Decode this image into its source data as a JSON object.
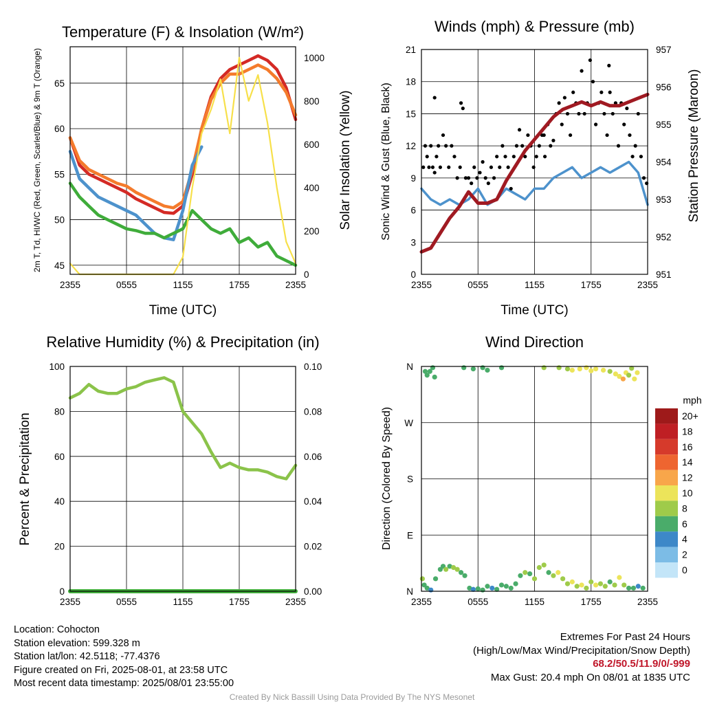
{
  "chart_data": [
    {
      "type": "line",
      "title": "Temperature (F) & Insolation (W/m²)",
      "ylabel_left": "2m T, Td, HI/WC (Red, Green, Scarlet/Blue) & 9m T (Orange)",
      "ylabel_right": "Solar Insolation (Yellow)",
      "xlabel": "Time (UTC)",
      "x_ticks": [
        "2355",
        "0555",
        "1155",
        "1755",
        "2355"
      ],
      "ylim_left": [
        44,
        69
      ],
      "yticks_left": [
        45,
        50,
        55,
        60,
        65
      ],
      "ylim_right": [
        0,
        1050
      ],
      "yticks_right": [
        0,
        200,
        400,
        600,
        800,
        1000
      ],
      "x_hours": [
        0,
        1,
        2,
        3,
        4,
        5,
        6,
        7,
        8,
        9,
        10,
        11,
        12,
        13,
        14,
        15,
        16,
        17,
        18,
        19,
        20,
        21,
        22,
        23,
        24
      ],
      "series": [
        {
          "color": "#d42a25",
          "values": [
            59,
            56,
            55,
            54.5,
            54,
            53.5,
            53,
            52.3,
            51.8,
            51.3,
            50.8,
            50.7,
            51.5,
            55,
            60,
            63.5,
            65.5,
            66.5,
            67,
            67.5,
            68,
            67.5,
            66.5,
            64.5,
            61
          ]
        },
        {
          "color": "#f47b2c",
          "values": [
            59,
            56.5,
            55.5,
            55,
            54.5,
            54,
            53.7,
            53,
            52.5,
            52,
            51.5,
            51.3,
            52,
            55.5,
            60,
            63.2,
            65,
            66,
            66,
            66.5,
            67,
            66.5,
            65.5,
            64,
            61.5
          ]
        },
        {
          "color": "#4d92cc",
          "values": [
            57.5,
            54.5,
            53.5,
            52.5,
            52,
            51.5,
            51,
            50.5,
            49.5,
            48.5,
            48,
            47.8,
            51,
            56,
            58,
            null,
            null,
            null,
            null,
            null,
            null,
            null,
            null,
            null,
            null
          ]
        },
        {
          "color": "#3fac3a",
          "values": [
            54,
            52.5,
            51.5,
            50.5,
            50,
            49.5,
            49,
            48.8,
            48.5,
            48.5,
            48,
            48.5,
            49,
            51,
            50,
            49,
            48.5,
            49,
            47.5,
            48,
            47,
            47.5,
            46,
            45.5,
            45
          ]
        },
        {
          "color": "#f7e04a",
          "values": [
            50,
            0,
            0,
            0,
            0,
            0,
            0,
            0,
            0,
            0,
            0,
            0,
            80,
            400,
            650,
            760,
            900,
            650,
            1000,
            800,
            920,
            700,
            400,
            150,
            50
          ]
        }
      ]
    },
    {
      "type": "line",
      "title": "Winds (mph) & Pressure (mb)",
      "ylabel_left": "Sonic Wind & Gust (Blue, Black)",
      "ylabel_right": "Station Pressure (Maroon)",
      "xlabel": "Time (UTC)",
      "x_ticks": [
        "2355",
        "0555",
        "1155",
        "1755",
        "2355"
      ],
      "ylim_left": [
        0,
        21
      ],
      "yticks_left": [
        0,
        3,
        6,
        9,
        12,
        15,
        18,
        21
      ],
      "ylim_right": [
        951,
        957
      ],
      "yticks_right": [
        951,
        952,
        953,
        954,
        955,
        956,
        957
      ],
      "x_hours": [
        0,
        1,
        2,
        3,
        4,
        5,
        6,
        7,
        8,
        9,
        10,
        11,
        12,
        13,
        14,
        15,
        16,
        17,
        18,
        19,
        20,
        21,
        22,
        23,
        24
      ],
      "series": [
        {
          "color": "#4d92cc",
          "values": [
            8,
            7,
            6.5,
            7,
            6.5,
            7,
            8,
            6.5,
            7,
            8,
            7.5,
            7,
            8,
            8,
            9,
            9.5,
            10,
            9,
            9.5,
            10,
            9.5,
            10,
            10.5,
            9.5,
            6.5
          ]
        },
        {
          "color": "#a01a22",
          "values": [
            951.6,
            951.7,
            952.1,
            952.5,
            952.8,
            953.2,
            952.9,
            952.9,
            953.0,
            953.5,
            953.9,
            954.3,
            954.6,
            954.9,
            955.2,
            955.4,
            955.5,
            955.6,
            955.5,
            955.6,
            955.5,
            955.5,
            955.6,
            955.7,
            955.8
          ]
        }
      ],
      "gust_points": [
        [
          0.2,
          10
        ],
        [
          0.4,
          12
        ],
        [
          0.6,
          11
        ],
        [
          0.8,
          10
        ],
        [
          1.0,
          12
        ],
        [
          1.2,
          10
        ],
        [
          1.4,
          9.5
        ],
        [
          1.6,
          11
        ],
        [
          1.8,
          12
        ],
        [
          2.0,
          10
        ],
        [
          2.3,
          13
        ],
        [
          2.6,
          12
        ],
        [
          2.9,
          10
        ],
        [
          3.2,
          12
        ],
        [
          3.5,
          11
        ],
        [
          3.8,
          9
        ],
        [
          4.1,
          10
        ],
        [
          4.4,
          15.5
        ],
        [
          4.7,
          9
        ],
        [
          5.0,
          9
        ],
        [
          5.3,
          8.5
        ],
        [
          5.6,
          10
        ],
        [
          5.9,
          9
        ],
        [
          6.2,
          9.5
        ],
        [
          6.5,
          10.5
        ],
        [
          6.8,
          9
        ],
        [
          7.1,
          8.5
        ],
        [
          7.4,
          10
        ],
        [
          7.7,
          9
        ],
        [
          8.0,
          11
        ],
        [
          8.3,
          10
        ],
        [
          8.6,
          12
        ],
        [
          8.9,
          11
        ],
        [
          9.2,
          10
        ],
        [
          9.5,
          8
        ],
        [
          9.8,
          11
        ],
        [
          10.1,
          12
        ],
        [
          10.4,
          13.5
        ],
        [
          10.7,
          12
        ],
        [
          11.0,
          11
        ],
        [
          11.3,
          13
        ],
        [
          11.6,
          12
        ],
        [
          11.9,
          10
        ],
        [
          12.2,
          11
        ],
        [
          12.5,
          12
        ],
        [
          12.8,
          13
        ],
        [
          13.1,
          11
        ],
        [
          13.4,
          14
        ],
        [
          13.7,
          12
        ],
        [
          14.0,
          12.5
        ],
        [
          14.3,
          15
        ],
        [
          14.6,
          16
        ],
        [
          14.9,
          14
        ],
        [
          15.2,
          16.5
        ],
        [
          15.5,
          15
        ],
        [
          15.8,
          13
        ],
        [
          16.1,
          17
        ],
        [
          16.4,
          16
        ],
        [
          16.7,
          15
        ],
        [
          17.0,
          19
        ],
        [
          17.3,
          15
        ],
        [
          17.6,
          16
        ],
        [
          17.9,
          20
        ],
        [
          18.2,
          18
        ],
        [
          18.5,
          14
        ],
        [
          18.8,
          16
        ],
        [
          19.1,
          17
        ],
        [
          19.4,
          15
        ],
        [
          19.7,
          13
        ],
        [
          20.0,
          17
        ],
        [
          20.3,
          15
        ],
        [
          20.6,
          16
        ],
        [
          20.9,
          12
        ],
        [
          21.2,
          16
        ],
        [
          21.5,
          14
        ],
        [
          21.8,
          15.5
        ],
        [
          22.1,
          13
        ],
        [
          22.4,
          11
        ],
        [
          22.7,
          12
        ],
        [
          23.0,
          15
        ],
        [
          23.3,
          11
        ],
        [
          23.6,
          9
        ],
        [
          23.9,
          8.5
        ],
        [
          1.4,
          16.5
        ],
        [
          4.2,
          16
        ],
        [
          13.0,
          13
        ],
        [
          19.9,
          19.5
        ]
      ]
    },
    {
      "type": "line",
      "title": "Relative Humidity (%) & Precipitation (in)",
      "ylabel_left": "Percent & Precipitation",
      "x_ticks": [
        "2355",
        "0555",
        "1155",
        "1755",
        "2355"
      ],
      "ylim_left": [
        0,
        100
      ],
      "yticks_left": [
        0,
        20,
        40,
        60,
        80,
        100
      ],
      "ylim_right": [
        0,
        0.1
      ],
      "yticks_right": [
        "0.00",
        "0.02",
        "0.04",
        "0.06",
        "0.08",
        "0.10"
      ],
      "x_hours": [
        0,
        1,
        2,
        3,
        4,
        5,
        6,
        7,
        8,
        9,
        10,
        11,
        12,
        13,
        14,
        15,
        16,
        17,
        18,
        19,
        20,
        21,
        22,
        23,
        24
      ],
      "series": [
        {
          "color": "#8bc34a",
          "values": [
            86,
            88,
            92,
            89,
            88,
            88,
            90,
            91,
            93,
            94,
            95,
            93,
            80,
            75,
            70,
            62,
            55,
            57,
            55,
            54,
            54,
            53,
            51,
            50,
            56
          ]
        },
        {
          "color": "#3fac3a",
          "values": [
            0,
            0,
            0,
            0,
            0,
            0,
            0,
            0,
            0,
            0,
            0,
            0,
            0,
            0,
            0,
            0,
            0,
            0,
            0,
            0,
            0,
            0,
            0,
            0,
            0
          ]
        }
      ]
    },
    {
      "type": "scatter",
      "title": "Wind Direction",
      "ylabel_left": "Direction (Colored By Speed)",
      "x_ticks": [
        "2355",
        "0555",
        "1155",
        "1755",
        "2355"
      ],
      "y_ticks": [
        "N",
        "E",
        "S",
        "W",
        "N"
      ],
      "ylim": [
        0,
        360
      ],
      "legend_title": "mph",
      "legend_labels": [
        "20+",
        "18",
        "16",
        "14",
        "12",
        "10",
        "8",
        "6",
        "4",
        "2",
        "0"
      ],
      "legend_colors": [
        "#9e1a1a",
        "#bf1f24",
        "#d63a2b",
        "#ee6530",
        "#f8a64a",
        "#ece45a",
        "#9fcb4a",
        "#4aac6a",
        "#3d88c8",
        "#7cbce6",
        "#c3e5f8"
      ],
      "points": [
        [
          0.1,
          20,
          8
        ],
        [
          0.3,
          10,
          7
        ],
        [
          0.6,
          5,
          6
        ],
        [
          1.0,
          2,
          5
        ],
        [
          1.5,
          20,
          7
        ],
        [
          2.0,
          35,
          6
        ],
        [
          2.3,
          40,
          7
        ],
        [
          2.6,
          35,
          8
        ],
        [
          3.0,
          40,
          7
        ],
        [
          3.4,
          38,
          9
        ],
        [
          3.8,
          35,
          8
        ],
        [
          4.2,
          30,
          7
        ],
        [
          4.6,
          25,
          6
        ],
        [
          5.1,
          5,
          6
        ],
        [
          5.5,
          3,
          5
        ],
        [
          6.0,
          4,
          6
        ],
        [
          6.5,
          2,
          6
        ],
        [
          7.0,
          8,
          7
        ],
        [
          7.5,
          5,
          5
        ],
        [
          8.0,
          3,
          6
        ],
        [
          8.5,
          10,
          7
        ],
        [
          9.0,
          8,
          6
        ],
        [
          9.5,
          5,
          6
        ],
        [
          10.0,
          12,
          7
        ],
        [
          10.5,
          25,
          7
        ],
        [
          11.0,
          30,
          8
        ],
        [
          11.5,
          28,
          7
        ],
        [
          12.0,
          20,
          8
        ],
        [
          12.5,
          38,
          9
        ],
        [
          13.0,
          42,
          8
        ],
        [
          13.5,
          30,
          7
        ],
        [
          14.0,
          25,
          8
        ],
        [
          14.5,
          30,
          10
        ],
        [
          15.0,
          20,
          8
        ],
        [
          15.5,
          12,
          9
        ],
        [
          16.0,
          15,
          10
        ],
        [
          16.5,
          8,
          9
        ],
        [
          17.0,
          10,
          10
        ],
        [
          17.5,
          5,
          8
        ],
        [
          18.0,
          15,
          8
        ],
        [
          18.5,
          10,
          10
        ],
        [
          19.0,
          12,
          9
        ],
        [
          19.5,
          8,
          8
        ],
        [
          20.0,
          15,
          7
        ],
        [
          20.5,
          10,
          9
        ],
        [
          21.0,
          22,
          10
        ],
        [
          21.5,
          10,
          8
        ],
        [
          22.0,
          5,
          7
        ],
        [
          22.5,
          5,
          6
        ],
        [
          23.0,
          8,
          5
        ],
        [
          23.5,
          5,
          6
        ],
        [
          0.4,
          352,
          7
        ],
        [
          0.6,
          346,
          6
        ],
        [
          0.9,
          352,
          7
        ],
        [
          1.2,
          358,
          6
        ],
        [
          1.4,
          343,
          6
        ],
        [
          4.5,
          358,
          6
        ],
        [
          5.5,
          356,
          6
        ],
        [
          6.5,
          358,
          7
        ],
        [
          7.0,
          354,
          6
        ],
        [
          8.5,
          358,
          7
        ],
        [
          13.0,
          358,
          9
        ],
        [
          14.6,
          358,
          8
        ],
        [
          15.5,
          356,
          9
        ],
        [
          16.0,
          354,
          10
        ],
        [
          16.8,
          356,
          10
        ],
        [
          17.5,
          358,
          10
        ],
        [
          18.0,
          353,
          11
        ],
        [
          18.5,
          356,
          10
        ],
        [
          19.3,
          354,
          10
        ],
        [
          20.0,
          352,
          9
        ],
        [
          20.6,
          348,
          11
        ],
        [
          21.0,
          344,
          10
        ],
        [
          21.4,
          340,
          12
        ],
        [
          21.7,
          350,
          10
        ],
        [
          22.0,
          346,
          9
        ],
        [
          22.3,
          357,
          8
        ],
        [
          22.6,
          340,
          10
        ],
        [
          22.9,
          350,
          10
        ]
      ]
    }
  ],
  "footer": {
    "location": "Location: Cohocton",
    "elevation": "Station elevation: 599.328 m",
    "latlon": "Station lat/lon: 42.5118; -77.4376",
    "created": "Figure created on Fri, 2025-08-01, at 23:58 UTC",
    "recent": "Most recent data timestamp: 2025/08/01 23:55:00",
    "extremes_title": "Extremes For Past 24 Hours",
    "extremes_desc": "(High/Low/Max Wind/Precipitation/Snow Depth)",
    "extremes_values": "68.2/50.5/11.9/0/-999",
    "max_gust": "Max Gust: 20.4 mph On 08/01 at 1835 UTC",
    "credit": "Created By Nick Bassill Using Data Provided By The NYS Mesonet"
  }
}
